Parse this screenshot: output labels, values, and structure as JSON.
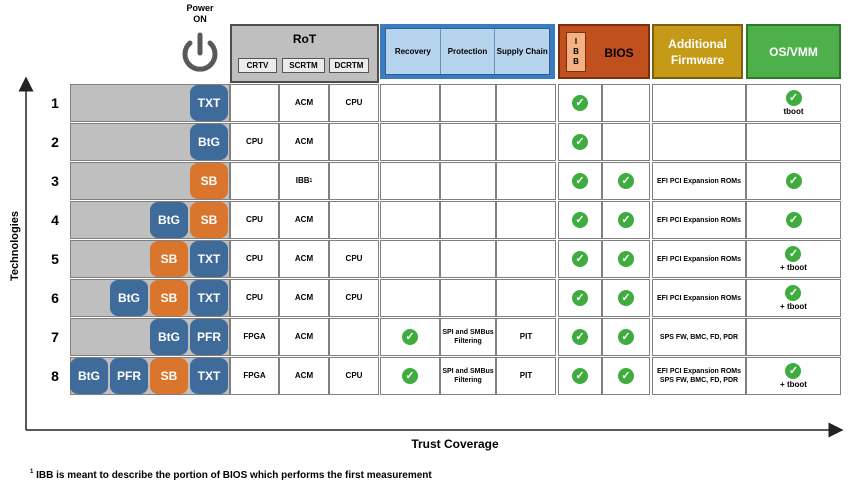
{
  "power": {
    "label_line1": "Power",
    "label_line2": "ON",
    "icon": "power-icon"
  },
  "axes": {
    "y_label": "Technologies",
    "x_label": "Trust Coverage"
  },
  "footnote": {
    "marker": "1",
    "text": "IBB is meant to describe the portion of BIOS which performs the first measurement"
  },
  "headers": {
    "rot": {
      "title": "RoT",
      "sub": [
        "CRTV",
        "SCRTM",
        "DCRTM"
      ]
    },
    "resilience": [
      "Recovery",
      "Protection",
      "Supply Chain"
    ],
    "bios": {
      "ibb_letters": [
        "I",
        "B",
        "B"
      ],
      "title": "BIOS"
    },
    "firmware": {
      "line1": "Additional",
      "line2": "Firmware"
    },
    "os": "OS/VMM"
  },
  "colors": {
    "blue_badge": "#3e6b9a",
    "orange_badge": "#d9752c",
    "check": "#3fac3f"
  },
  "rows": [
    {
      "num": "1",
      "badges": [
        {
          "text": "TXT",
          "color": "blue"
        }
      ],
      "crtv": "",
      "scrtm": "ACM",
      "scrtm_sup": "",
      "dcrtm": "CPU",
      "recovery": false,
      "protection": "",
      "supply": "",
      "ibb": true,
      "bios": false,
      "firmware": "",
      "os_check": true,
      "os_label": "tboot"
    },
    {
      "num": "2",
      "badges": [
        {
          "text": "BtG",
          "color": "blue"
        }
      ],
      "crtv": "CPU",
      "scrtm": "ACM",
      "scrtm_sup": "",
      "dcrtm": "",
      "recovery": false,
      "protection": "",
      "supply": "",
      "ibb": true,
      "bios": false,
      "firmware": "",
      "os_check": false,
      "os_label": ""
    },
    {
      "num": "3",
      "badges": [
        {
          "text": "SB",
          "color": "orange"
        }
      ],
      "crtv": "",
      "scrtm": "IBB",
      "scrtm_sup": "1",
      "dcrtm": "",
      "recovery": false,
      "protection": "",
      "supply": "",
      "ibb": true,
      "bios": true,
      "firmware": "EFI PCI Expansion ROMs",
      "os_check": true,
      "os_label": ""
    },
    {
      "num": "4",
      "badges": [
        {
          "text": "BtG",
          "color": "blue"
        },
        {
          "text": "SB",
          "color": "orange"
        }
      ],
      "crtv": "CPU",
      "scrtm": "ACM",
      "scrtm_sup": "",
      "dcrtm": "",
      "recovery": false,
      "protection": "",
      "supply": "",
      "ibb": true,
      "bios": true,
      "firmware": "EFI PCI Expansion ROMs",
      "os_check": true,
      "os_label": ""
    },
    {
      "num": "5",
      "badges": [
        {
          "text": "SB",
          "color": "orange"
        },
        {
          "text": "TXT",
          "color": "blue"
        }
      ],
      "crtv": "CPU",
      "scrtm": "ACM",
      "scrtm_sup": "",
      "dcrtm": "CPU",
      "recovery": false,
      "protection": "",
      "supply": "",
      "ibb": true,
      "bios": true,
      "firmware": "EFI PCI Expansion ROMs",
      "os_check": true,
      "os_label": "+ tboot"
    },
    {
      "num": "6",
      "badges": [
        {
          "text": "BtG",
          "color": "blue"
        },
        {
          "text": "SB",
          "color": "orange"
        },
        {
          "text": "TXT",
          "color": "blue"
        }
      ],
      "crtv": "CPU",
      "scrtm": "ACM",
      "scrtm_sup": "",
      "dcrtm": "CPU",
      "recovery": false,
      "protection": "",
      "supply": "",
      "ibb": true,
      "bios": true,
      "firmware": "EFI PCI Expansion ROMs",
      "os_check": true,
      "os_label": "+ tboot"
    },
    {
      "num": "7",
      "badges": [
        {
          "text": "BtG",
          "color": "blue"
        },
        {
          "text": "PFR",
          "color": "blue"
        }
      ],
      "crtv": "FPGA",
      "scrtm": "ACM",
      "scrtm_sup": "",
      "dcrtm": "",
      "recovery": true,
      "protection": "SPI and SMBus Filtering",
      "supply": "PIT",
      "ibb": true,
      "bios": true,
      "firmware": "SPS FW, BMC, FD, PDR",
      "os_check": false,
      "os_label": ""
    },
    {
      "num": "8",
      "badges": [
        {
          "text": "BtG",
          "color": "blue"
        },
        {
          "text": "PFR",
          "color": "blue"
        },
        {
          "text": "SB",
          "color": "orange"
        },
        {
          "text": "TXT",
          "color": "blue"
        }
      ],
      "crtv": "FPGA",
      "scrtm": "ACM",
      "scrtm_sup": "",
      "dcrtm": "CPU",
      "recovery": true,
      "protection": "SPI and SMBus Filtering",
      "supply": "PIT",
      "ibb": true,
      "bios": true,
      "firmware": "EFI PCI Expansion ROMs SPS FW, BMC, FD, PDR",
      "os_check": true,
      "os_label": "+ tboot"
    }
  ]
}
